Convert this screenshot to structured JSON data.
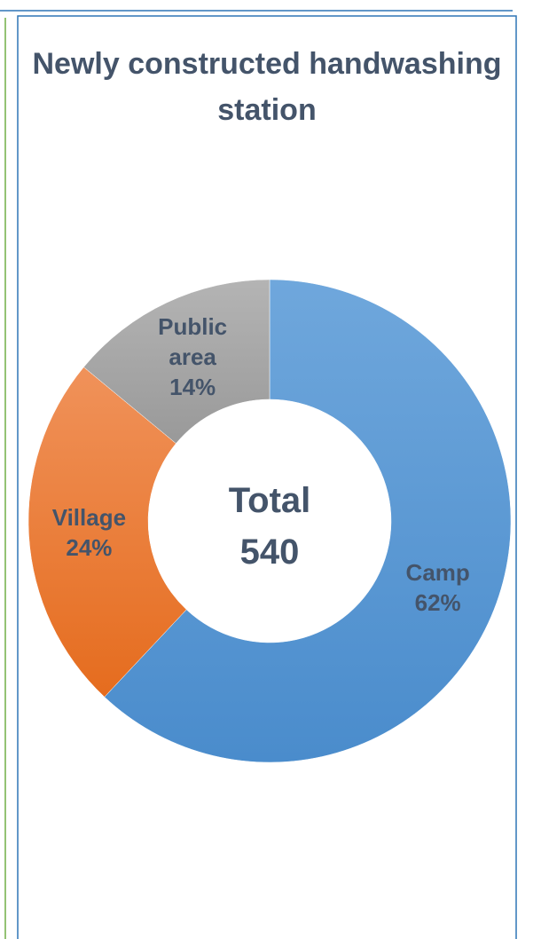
{
  "chart_data": {
    "type": "donut",
    "title": "Newly constructed handwashing station",
    "categories": [
      "Camp",
      "Village",
      "Public area"
    ],
    "values": [
      62,
      24,
      14
    ],
    "value_labels": [
      "62%",
      "24%",
      "14%"
    ],
    "colors": [
      "#5b9bd5",
      "#ed7d31",
      "#a5a5a5"
    ],
    "center_label": "Total",
    "total": 540
  }
}
